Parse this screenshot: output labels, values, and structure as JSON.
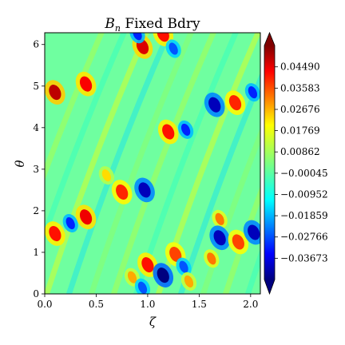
{
  "chart_data": {
    "type": "heatmap",
    "title": "B_n Fixed Bdry",
    "title_base": "B",
    "title_sub": "n",
    "title_rest": " Fixed Bdry",
    "xlabel": "ζ",
    "ylabel": "θ",
    "xlim": [
      0,
      2.0944
    ],
    "ylim": [
      0,
      6.2832
    ],
    "x_ticks": [
      "0.0",
      "0.5",
      "1.0",
      "1.5",
      "2.0"
    ],
    "x_tick_values": [
      0.0,
      0.5,
      1.0,
      1.5,
      2.0
    ],
    "y_ticks": [
      "0",
      "1",
      "2",
      "3",
      "4",
      "5",
      "6"
    ],
    "y_tick_values": [
      0,
      1,
      2,
      3,
      4,
      5,
      6
    ],
    "colormap": "jet",
    "colorbar": {
      "vmin": -0.0458,
      "vmax": 0.054,
      "extend": "both",
      "tick_labels": [
        "0.04490",
        "0.03583",
        "0.02676",
        "0.01769",
        "0.00862",
        "−0.00045",
        "−0.00952",
        "−0.01859",
        "−0.02766",
        "−0.03673"
      ],
      "tick_values": [
        0.0449,
        0.03583,
        0.02676,
        0.01769,
        0.00862,
        -0.00045,
        -0.00952,
        -0.01859,
        -0.02766,
        -0.03673
      ]
    },
    "features": [
      {
        "zeta": 0.1,
        "theta": 4.85,
        "value": 0.048
      },
      {
        "zeta": 0.4,
        "theta": 5.05,
        "value": 0.042
      },
      {
        "zeta": 0.95,
        "theta": 5.95,
        "value": 0.045
      },
      {
        "zeta": 1.15,
        "theta": 6.25,
        "value": 0.04
      },
      {
        "zeta": 0.9,
        "theta": 6.25,
        "value": -0.03
      },
      {
        "zeta": 1.25,
        "theta": 5.9,
        "value": -0.025
      },
      {
        "zeta": 1.65,
        "theta": 4.55,
        "value": -0.04
      },
      {
        "zeta": 1.85,
        "theta": 4.6,
        "value": 0.038
      },
      {
        "zeta": 2.02,
        "theta": 4.85,
        "value": -0.03
      },
      {
        "zeta": 1.2,
        "theta": 3.9,
        "value": 0.04
      },
      {
        "zeta": 1.37,
        "theta": 3.95,
        "value": -0.03
      },
      {
        "zeta": 0.97,
        "theta": 2.5,
        "value": -0.04
      },
      {
        "zeta": 0.75,
        "theta": 2.45,
        "value": 0.038
      },
      {
        "zeta": 0.6,
        "theta": 2.85,
        "value": 0.02
      },
      {
        "zeta": 0.4,
        "theta": 1.85,
        "value": 0.043
      },
      {
        "zeta": 0.25,
        "theta": 1.7,
        "value": -0.03
      },
      {
        "zeta": 0.1,
        "theta": 1.45,
        "value": 0.04
      },
      {
        "zeta": 1.0,
        "theta": 0.7,
        "value": 0.04
      },
      {
        "zeta": 1.15,
        "theta": 0.45,
        "value": -0.046
      },
      {
        "zeta": 1.27,
        "theta": 0.95,
        "value": 0.035
      },
      {
        "zeta": 1.35,
        "theta": 0.65,
        "value": -0.025
      },
      {
        "zeta": 0.85,
        "theta": 0.4,
        "value": 0.025
      },
      {
        "zeta": 0.95,
        "theta": 0.15,
        "value": -0.025
      },
      {
        "zeta": 1.7,
        "theta": 1.8,
        "value": 0.03
      },
      {
        "zeta": 1.7,
        "theta": 1.35,
        "value": -0.04
      },
      {
        "zeta": 1.88,
        "theta": 1.25,
        "value": 0.035
      },
      {
        "zeta": 2.03,
        "theta": 1.48,
        "value": -0.04
      },
      {
        "zeta": 1.62,
        "theta": 0.85,
        "value": 0.03
      },
      {
        "zeta": 1.4,
        "theta": 0.3,
        "value": 0.025
      }
    ]
  }
}
